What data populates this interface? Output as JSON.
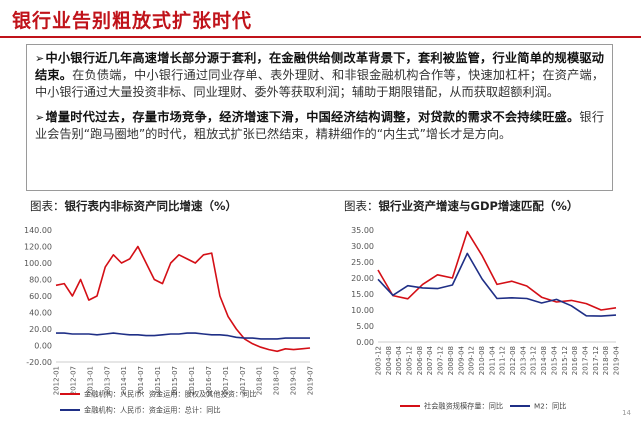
{
  "header": {
    "title": "银行业告别粗放式扩张时代"
  },
  "summary": {
    "p1_bold": "中小银行近几年高速增长部分源于套利，在金融供给侧改革背景下，套利被监管，行业简单的规模驱动结束。",
    "p1_text": "在负债端，中小银行通过同业存单、表外理财、和非银金融机构合作等，快速加杠杆；在资产端，中小银行通过大量投资非标、同业理财、委外等获取利润；辅助于期限错配，从而获取超额利润。",
    "p2_bold": "增量时代过去，存量市场竞争，经济增速下滑，中国经济结构调整，对贷款的需求不会持续旺盛。",
    "p2_text": "银行业会告别“跑马圈地”的时代，粗放式扩张已然结束，精耕细作的“内生式”增长才是方向。"
  },
  "chart_data": [
    {
      "type": "line",
      "caption_prefix": "图表：",
      "title": "银行表内非标资产同比增速（%）",
      "x": [
        "2012-01",
        "2012-04",
        "2012-07",
        "2012-10",
        "2013-01",
        "2013-04",
        "2013-07",
        "2013-10",
        "2014-01",
        "2014-04",
        "2014-07",
        "2014-10",
        "2015-01",
        "2015-04",
        "2015-07",
        "2015-10",
        "2016-01",
        "2016-04",
        "2016-07",
        "2016-10",
        "2017-01",
        "2017-04",
        "2017-07",
        "2017-10",
        "2018-01",
        "2018-04",
        "2018-07",
        "2018-10",
        "2019-01",
        "2019-04",
        "2019-07",
        "2019-10"
      ],
      "xticks": [
        "2012-01",
        "2012-07",
        "2013-01",
        "2013-07",
        "2014-01",
        "2014-07",
        "2015-01",
        "2015-07",
        "2016-01",
        "2016-07",
        "2017-01",
        "2017-07",
        "2018-01",
        "2018-07",
        "2019-01",
        "2019-07"
      ],
      "ylim": [
        -20,
        140
      ],
      "yticks": [
        "-20.00",
        "0.00",
        "20.00",
        "40.00",
        "60.00",
        "80.00",
        "100.00",
        "120.00",
        "140.00"
      ],
      "series": [
        {
          "name": "金融机构：人民币：资金运用：股权及其他投资：同比",
          "color": "#d40f16",
          "values": [
            73,
            75,
            60,
            80,
            55,
            60,
            95,
            110,
            100,
            105,
            120,
            100,
            80,
            75,
            100,
            110,
            105,
            100,
            110,
            112,
            60,
            35,
            20,
            8,
            2,
            -2,
            -5,
            -7,
            -4,
            -5,
            -4,
            -3
          ]
        },
        {
          "name": "金融机构：人民币：资金运用：总计：同比",
          "color": "#1f2f86",
          "values": [
            15,
            15,
            14,
            14,
            14,
            13,
            14,
            15,
            14,
            13,
            13,
            12,
            12,
            13,
            14,
            14,
            15,
            15,
            14,
            13,
            13,
            12,
            10,
            9,
            9,
            8,
            8,
            8,
            9,
            9,
            9,
            9
          ]
        }
      ]
    },
    {
      "type": "line",
      "caption_prefix": "图表：",
      "title": "银行业资产增速与GDP增速匹配（%）",
      "x": [
        "2003-12",
        "2004-12",
        "2005-12",
        "2006-12",
        "2007-12",
        "2008-12",
        "2009-12",
        "2010-12",
        "2011-12",
        "2012-12",
        "2013-12",
        "2014-12",
        "2015-12",
        "2016-12",
        "2017-12",
        "2018-12",
        "2019-10"
      ],
      "xticks": [
        "2003-12",
        "2004-08",
        "2005-04",
        "2005-12",
        "2006-08",
        "2007-04",
        "2007-12",
        "2008-08",
        "2009-04",
        "2009-12",
        "2010-08",
        "2011-04",
        "2011-12",
        "2012-08",
        "2013-04",
        "2013-12",
        "2014-08",
        "2015-04",
        "2015-12",
        "2016-08",
        "2017-04",
        "2017-12",
        "2018-08",
        "2019-04"
      ],
      "ylim": [
        0,
        35
      ],
      "yticks": [
        "0.00",
        "5.00",
        "10.00",
        "15.00",
        "20.00",
        "25.00",
        "30.00",
        "35.00"
      ],
      "series": [
        {
          "name": "社会融资规模存量：同比",
          "color": "#d40f16",
          "values": [
            22.5,
            14.5,
            13.5,
            18,
            21,
            20,
            34.5,
            27,
            18,
            19,
            17.5,
            14,
            12.5,
            13,
            12,
            10,
            10.7
          ]
        },
        {
          "name": "M2：同比",
          "color": "#1f2f86",
          "values": [
            19.6,
            14.6,
            17.6,
            16.9,
            16.7,
            17.8,
            27.7,
            19.7,
            13.6,
            13.8,
            13.6,
            12.2,
            13.3,
            11.3,
            8.2,
            8.1,
            8.4
          ]
        }
      ]
    }
  ],
  "page": {
    "number": "14"
  }
}
